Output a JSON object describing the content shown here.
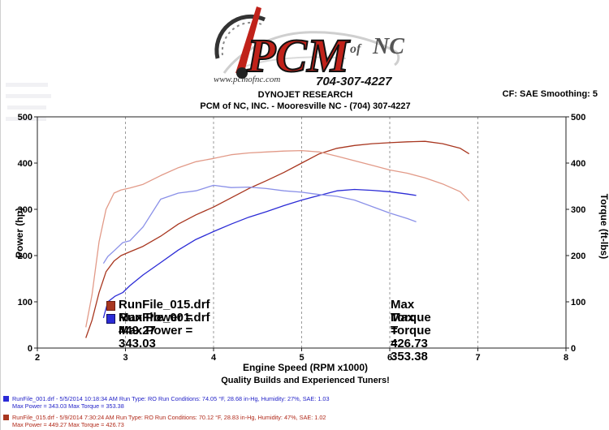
{
  "header": {
    "logo_main": "PCM",
    "logo_of": "of",
    "logo_nc": "NC",
    "logo_url": "www.pcmofnc.com",
    "logo_phone": "704-307-4227",
    "title": "DYNOJET RESEARCH",
    "shop_line": "PCM of NC, INC. - Mooresville NC - (704) 307-4227",
    "correction": "CF: SAE  Smoothing: 5"
  },
  "colors": {
    "blue_power": "#2b2bd6",
    "blue_torque": "#8a90e8",
    "red_power": "#a8361f",
    "red_torque": "#e29a88",
    "gridline": "#9a9a9a"
  },
  "chart_data": {
    "type": "line",
    "xlabel": "Engine Speed (RPM x1000)",
    "ylabel_left": "Power (hp)",
    "ylabel_right": "Torque (ft-lbs)",
    "xlim": [
      2,
      8
    ],
    "ylim": [
      0,
      500
    ],
    "x_ticks": [
      "2",
      "3",
      "4",
      "5",
      "6",
      "7",
      "8"
    ],
    "y_ticks": [
      "0",
      "100",
      "200",
      "300",
      "400",
      "500"
    ],
    "grid": "vertical dashed",
    "series": [
      {
        "name": "RunFile_015.drf",
        "kind": "power",
        "color_key": "red_power",
        "x": [
          2.55,
          2.62,
          2.7,
          2.78,
          2.87,
          2.95,
          3.05,
          3.2,
          3.4,
          3.6,
          3.8,
          4.0,
          4.2,
          4.4,
          4.6,
          4.8,
          5.0,
          5.2,
          5.4,
          5.6,
          5.8,
          6.0,
          6.2,
          6.4,
          6.6,
          6.8,
          6.9
        ],
        "y": [
          22,
          60,
          120,
          165,
          188,
          200,
          208,
          220,
          242,
          268,
          288,
          305,
          325,
          345,
          362,
          380,
          400,
          420,
          432,
          438,
          442,
          444,
          446,
          447,
          442,
          432,
          420
        ]
      },
      {
        "name": "RunFile_001.drf",
        "kind": "power",
        "color_key": "blue_power",
        "x": [
          2.75,
          2.8,
          2.88,
          2.97,
          3.05,
          3.2,
          3.4,
          3.6,
          3.8,
          4.0,
          4.2,
          4.4,
          4.6,
          4.8,
          5.0,
          5.2,
          5.4,
          5.6,
          5.8,
          6.0,
          6.2,
          6.3
        ],
        "y": [
          65,
          100,
          112,
          120,
          135,
          158,
          185,
          212,
          235,
          252,
          268,
          283,
          295,
          308,
          320,
          330,
          340,
          343,
          341,
          338,
          333,
          330
        ]
      },
      {
        "name": "RunFile_015.drf",
        "kind": "torque",
        "color_key": "red_torque",
        "x": [
          2.55,
          2.62,
          2.7,
          2.78,
          2.87,
          2.95,
          3.05,
          3.2,
          3.4,
          3.6,
          3.8,
          4.0,
          4.2,
          4.4,
          4.6,
          4.8,
          5.0,
          5.2,
          5.4,
          5.6,
          5.8,
          6.0,
          6.2,
          6.4,
          6.6,
          6.8,
          6.9
        ],
        "y": [
          45,
          115,
          230,
          300,
          335,
          342,
          346,
          354,
          373,
          390,
          403,
          410,
          418,
          422,
          424,
          426,
          427,
          424,
          415,
          405,
          395,
          385,
          378,
          368,
          355,
          338,
          318
        ]
      },
      {
        "name": "RunFile_001.drf",
        "kind": "torque",
        "color_key": "blue_torque",
        "x": [
          2.75,
          2.8,
          2.88,
          2.97,
          3.05,
          3.2,
          3.4,
          3.6,
          3.8,
          4.0,
          4.2,
          4.4,
          4.6,
          4.8,
          5.0,
          5.2,
          5.4,
          5.6,
          5.8,
          6.0,
          6.2,
          6.3
        ],
        "y": [
          183,
          198,
          212,
          228,
          232,
          262,
          322,
          335,
          340,
          352,
          347,
          348,
          345,
          340,
          337,
          332,
          328,
          320,
          306,
          292,
          280,
          273
        ]
      }
    ],
    "legend": [
      {
        "file": "RunFile_015.drf",
        "power_text": "Max Power = 449.27",
        "torque_text": "Max Torque = 426.73",
        "color_key": "red_power"
      },
      {
        "file": "RunFile_001.drf",
        "power_text": "Max Power = 343.03",
        "torque_text": "Max Torque = 353.38",
        "color_key": "blue_power"
      }
    ],
    "tagline": "Quality Builds and Experienced Tuners!"
  },
  "footer": [
    {
      "line1": "RunFile_001.drf - 5/5/2014 10:18:34 AM  Run Type: RO  Run Conditions: 74.05 °F, 28.68 in-Hg,  Humidity:  27%, SAE: 1.03",
      "line2": "Max Power = 343.03  Max Torque = 353.38",
      "color_key": "blue_power"
    },
    {
      "line1": "RunFile_015.drf - 5/9/2014 7:30:24 AM  Run Type: RO  Run Conditions: 70.12 °F, 28.83 in-Hg,  Humidity:  47%, SAE: 1.02",
      "line2": "Max Power = 449.27  Max Torque = 426.73",
      "color_key": "red_power"
    }
  ]
}
